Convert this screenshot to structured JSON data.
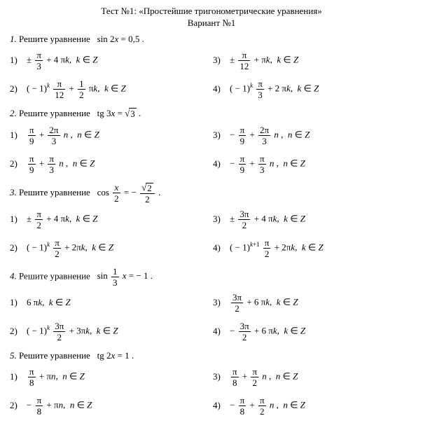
{
  "header": {
    "title": "Тест №1: «Простейшие тригонометрические уравнения»",
    "variant": "Вариант №1"
  },
  "problems": [
    {
      "num": "1.",
      "text_prefix": "Решите уравнение",
      "equation_html": "sin 2<i>x</i> = 0,5 .",
      "answers": [
        {
          "n": "1)",
          "html": "± <span class='frac'><span class='num'>π</span><span class='den'>3</span></span> + 4 π<i>k</i>,&nbsp; <i>k</i> ∈ <i>Z</i>"
        },
        {
          "n": "3)",
          "html": "± <span class='frac'><span class='num'>π</span><span class='den'>12</span></span> + π<i>k</i>,&nbsp; <i>k</i> ∈ <i>Z</i>"
        },
        {
          "n": "2)",
          "html": "( − 1)<sup><i>k</i></sup>&nbsp;<span class='frac'><span class='num'>π</span><span class='den'>12</span></span> + <span class='frac'><span class='num'>1</span><span class='den'>2</span></span> π<i>k</i>,&nbsp; <i>k</i> ∈ <i>Z</i>"
        },
        {
          "n": "4)",
          "html": "( − 1)<sup><i>k</i></sup>&nbsp;<span class='frac'><span class='num'>π</span><span class='den'>3</span></span> + 2 π<i>k</i>,&nbsp; <i>k</i> ∈ <i>Z</i>"
        }
      ]
    },
    {
      "num": "2.",
      "text_prefix": "Решите уравнение",
      "equation_html": "tg 3<i>x</i> = <span class='sqrt'><span class='sqrt-sym'></span><span class='sqrt-arg'>3</span></span> .",
      "answers": [
        {
          "n": "1)",
          "html": "<span class='frac'><span class='num'>π</span><span class='den'>9</span></span> + <span class='frac'><span class='num'>2π</span><span class='den'>3</span></span> <i>n</i> ,&nbsp; <i>n</i> ∈ <i>Z</i>"
        },
        {
          "n": "3)",
          "html": "− <span class='frac'><span class='num'>π</span><span class='den'>9</span></span> + <span class='frac'><span class='num'>2π</span><span class='den'>3</span></span> <i>n</i> ,&nbsp; <i>n</i> ∈ <i>Z</i>"
        },
        {
          "n": "2)",
          "html": "<span class='frac'><span class='num'>π</span><span class='den'>9</span></span> + <span class='frac'><span class='num'>π</span><span class='den'>3</span></span> <i>n</i> ,&nbsp; <i>n</i> ∈ <i>Z</i>"
        },
        {
          "n": "4)",
          "html": "− <span class='frac'><span class='num'>π</span><span class='den'>9</span></span> + <span class='frac'><span class='num'>π</span><span class='den'>3</span></span> <i>n</i> ,&nbsp; <i>n</i> ∈ <i>Z</i>"
        }
      ]
    },
    {
      "num": "3.",
      "text_prefix": "Решите уравнение",
      "equation_html": "cos <span class='frac'><span class='num'><i>x</i></span><span class='den'>2</span></span> = − <span class='frac'><span class='num'><span class='sqrt'><span class='sqrt-sym'></span><span class='sqrt-arg'>2</span></span></span><span class='den'>2</span></span> .",
      "answers": [
        {
          "n": "1)",
          "html": "± <span class='frac'><span class='num'>π</span><span class='den'>2</span></span> + 4 π<i>k</i>,&nbsp; <i>k</i> ∈ <i>Z</i>"
        },
        {
          "n": "3)",
          "html": "± <span class='frac'><span class='num'>3π</span><span class='den'>2</span></span> + 4 π<i>k</i>,&nbsp; <i>k</i> ∈ <i>Z</i>"
        },
        {
          "n": "2)",
          "html": "( − 1)<sup><i>k</i></sup>&nbsp;<span class='frac'><span class='num'>π</span><span class='den'>2</span></span> + 2π<i>k</i>,&nbsp; <i>k</i> ∈ <i>Z</i>"
        },
        {
          "n": "4)",
          "html": "( − 1)<sup><i>k</i>+1</sup>&nbsp;<span class='frac'><span class='num'>π</span><span class='den'>2</span></span> + 2π<i>k</i>,&nbsp; <i>k</i> ∈ <i>Z</i>"
        }
      ]
    },
    {
      "num": "4.",
      "text_prefix": "Решите уравнение",
      "equation_html": "sin <span class='frac'><span class='num'>1</span><span class='den'>3</span></span> <i>x</i> = − 1 .",
      "answers": [
        {
          "n": "1)",
          "html": "6 π<i>k</i>,&nbsp; <i>k</i> ∈ <i>Z</i>"
        },
        {
          "n": "3)",
          "html": "<span class='frac'><span class='num'>3π</span><span class='den'>2</span></span> + 6 π<i>k</i>,&nbsp; <i>k</i> ∈ <i>Z</i>"
        },
        {
          "n": "2)",
          "html": "( − 1)<sup><i>k</i></sup>&nbsp;<span class='frac'><span class='num'>3π</span><span class='den'>2</span></span> + 3π<i>k</i>,&nbsp; <i>k</i> ∈ <i>Z</i>"
        },
        {
          "n": "4)",
          "html": "− <span class='frac'><span class='num'>3π</span><span class='den'>2</span></span> + 6 π<i>k</i>,&nbsp; <i>k</i> ∈ <i>Z</i>"
        }
      ]
    },
    {
      "num": "5.",
      "text_prefix": "Решите уравнение",
      "equation_html": "tg 2<i>x</i> = 1 .",
      "answers": [
        {
          "n": "1)",
          "html": "<span class='frac'><span class='num'>π</span><span class='den'>8</span></span> + π<i>n</i>,&nbsp; <i>n</i> ∈ <i>Z</i>"
        },
        {
          "n": "3)",
          "html": "<span class='frac'><span class='num'>π</span><span class='den'>8</span></span> + <span class='frac'><span class='num'>π</span><span class='den'>2</span></span> <i>n</i> ,&nbsp; <i>n</i> ∈ <i>Z</i>"
        },
        {
          "n": "2)",
          "html": "− <span class='frac'><span class='num'>π</span><span class='den'>8</span></span> + π<i>n</i>,&nbsp; <i>n</i> ∈ <i>Z</i>"
        },
        {
          "n": "4)",
          "html": "− <span class='frac'><span class='num'>π</span><span class='den'>8</span></span> + <span class='frac'><span class='num'>π</span><span class='den'>2</span></span> <i>n</i> ,&nbsp; <i>n</i> ∈ <i>Z</i>"
        }
      ]
    }
  ]
}
